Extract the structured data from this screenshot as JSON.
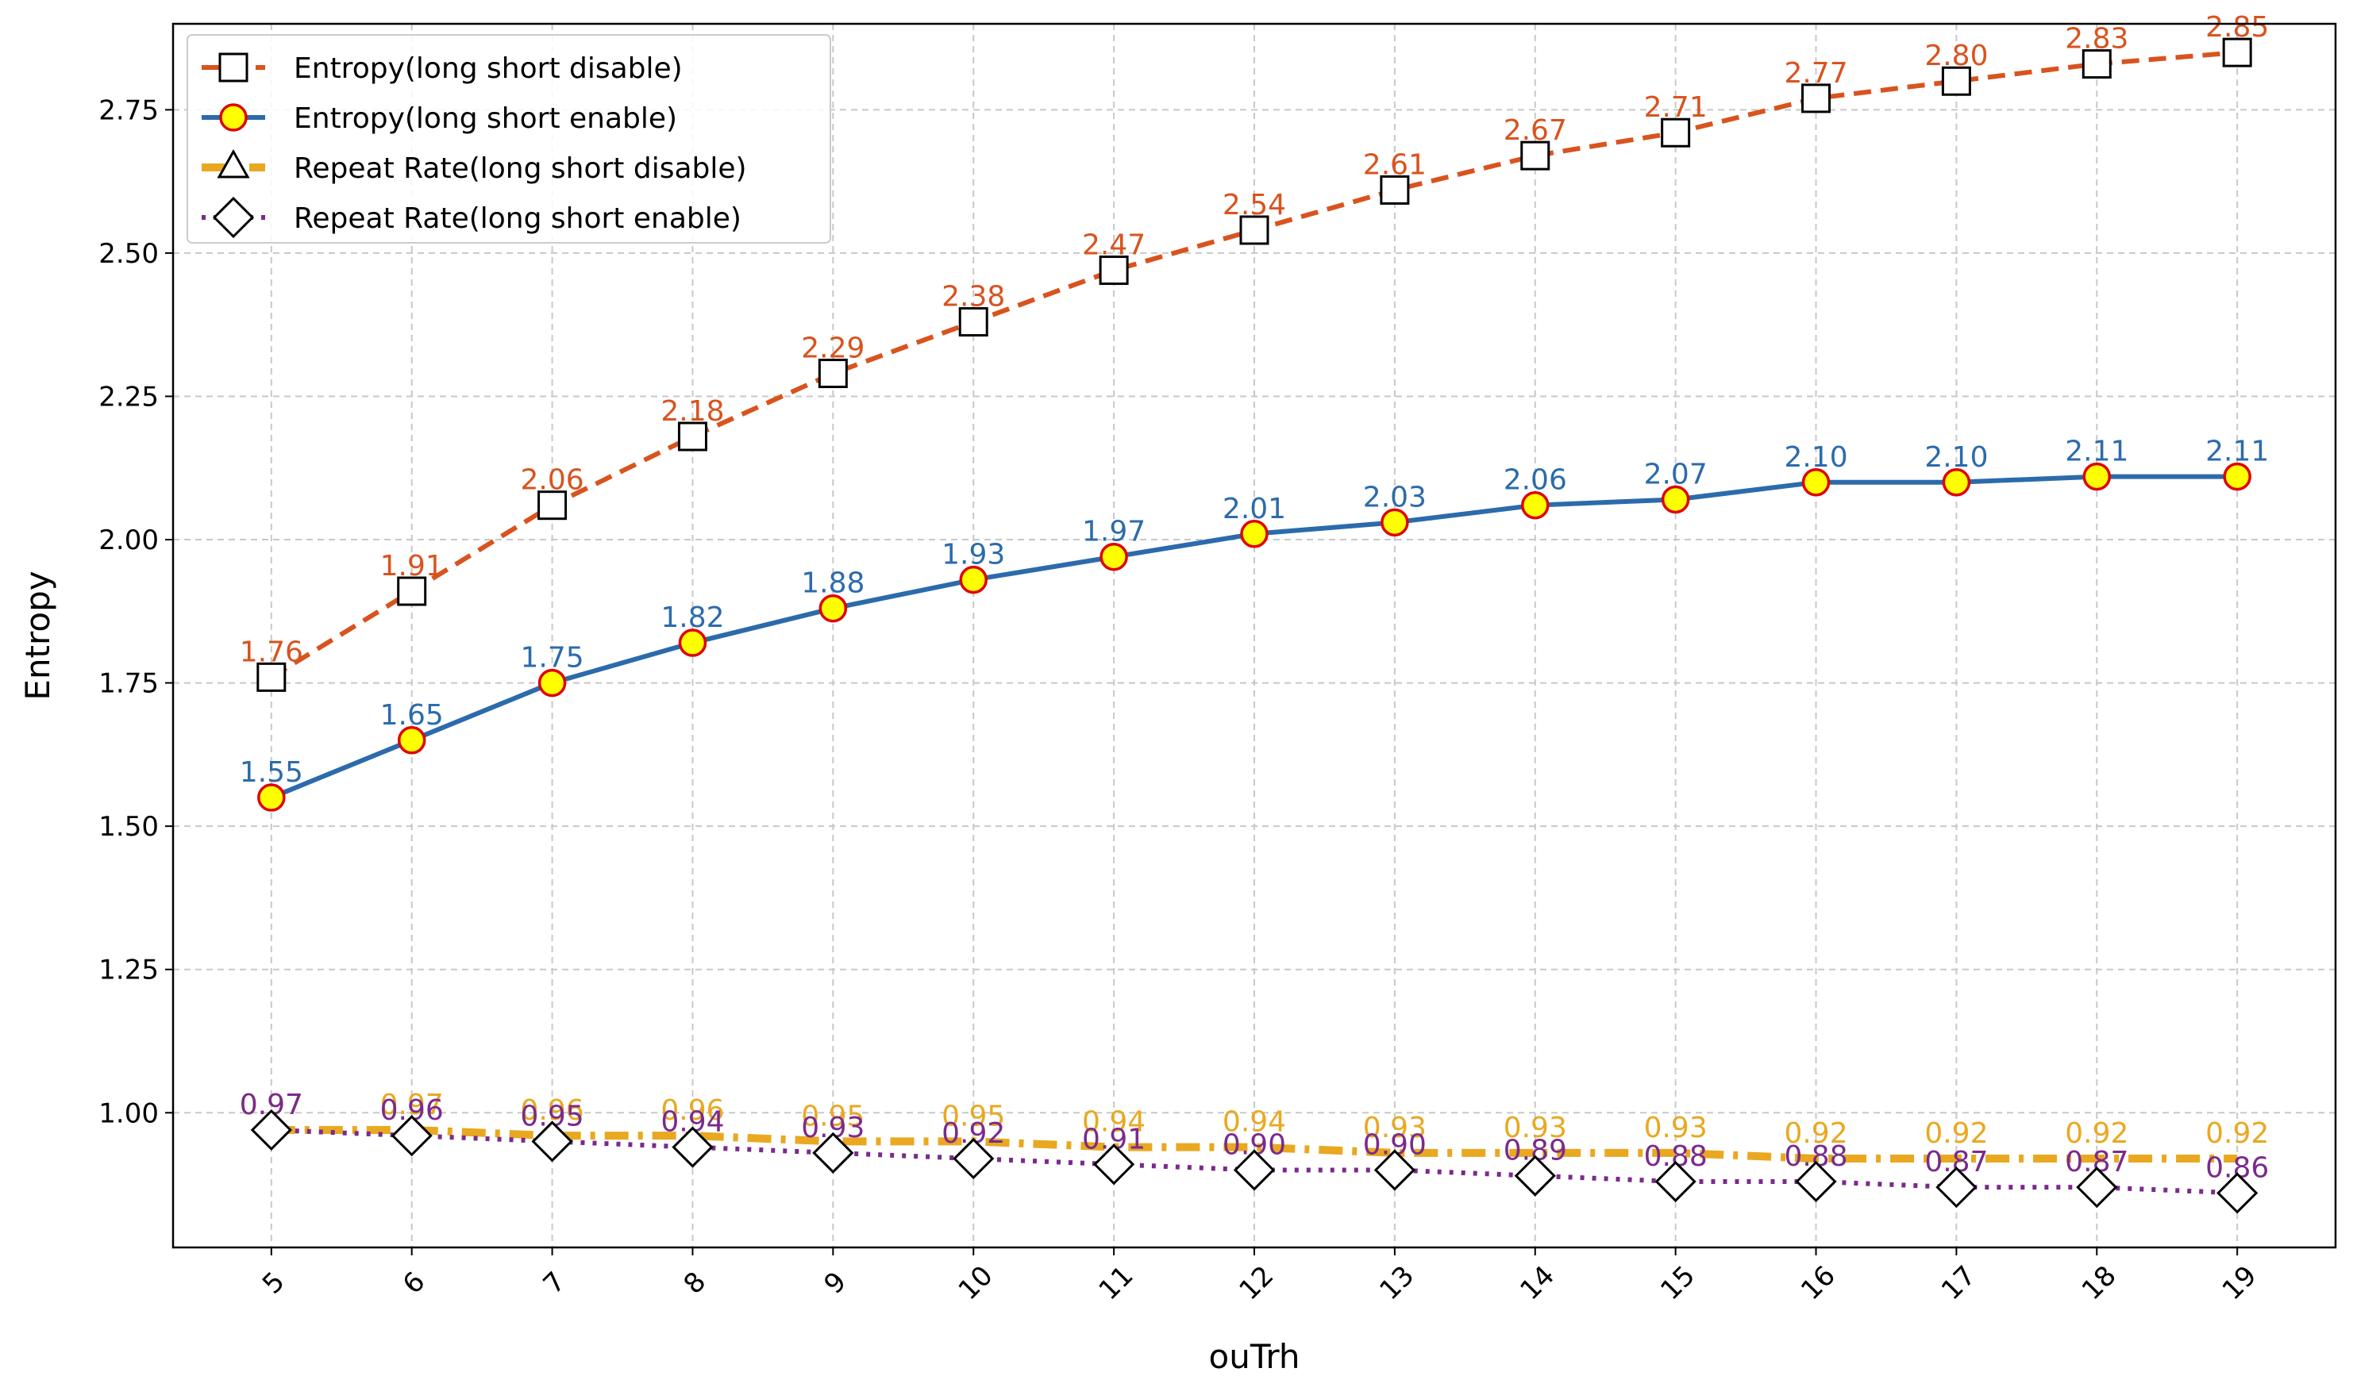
{
  "chart_data": {
    "type": "line",
    "xlabel": "ouTrh",
    "ylabel": "Entropy",
    "x": [
      5,
      6,
      7,
      8,
      9,
      10,
      11,
      12,
      13,
      14,
      15,
      16,
      17,
      18,
      19
    ],
    "xlim": [
      4.3,
      19.7
    ],
    "ylim": [
      0.765,
      2.9
    ],
    "yticks": [
      1.0,
      1.25,
      1.5,
      1.75,
      2.0,
      2.25,
      2.5,
      2.75
    ],
    "ytick_labels": [
      "1.00",
      "1.25",
      "1.50",
      "1.75",
      "2.00",
      "2.25",
      "2.50",
      "2.75"
    ],
    "xtick_labels": [
      "5",
      "6",
      "7",
      "8",
      "9",
      "10",
      "11",
      "12",
      "13",
      "14",
      "15",
      "16",
      "17",
      "18",
      "19"
    ],
    "grid": true,
    "legend_position": "top-left",
    "series": [
      {
        "name": "Entropy(long short disable)",
        "color": "#d9531e",
        "line_style": "dashed",
        "marker": "square",
        "values": [
          1.76,
          1.91,
          2.06,
          2.18,
          2.29,
          2.38,
          2.47,
          2.54,
          2.61,
          2.67,
          2.71,
          2.77,
          2.8,
          2.83,
          2.85
        ],
        "labels": [
          "1.76",
          "1.91",
          "2.06",
          "2.18",
          "2.29",
          "2.38",
          "2.47",
          "2.54",
          "2.61",
          "2.67",
          "2.71",
          "2.77",
          "2.80",
          "2.83",
          "2.85"
        ]
      },
      {
        "name": "Entropy(long short enable)",
        "color": "#2c6bab",
        "line_style": "solid",
        "marker": "circle",
        "values": [
          1.55,
          1.65,
          1.75,
          1.82,
          1.88,
          1.93,
          1.97,
          2.01,
          2.03,
          2.06,
          2.07,
          2.1,
          2.1,
          2.11,
          2.11
        ],
        "labels": [
          "1.55",
          "1.65",
          "1.75",
          "1.82",
          "1.88",
          "1.93",
          "1.97",
          "2.01",
          "2.03",
          "2.06",
          "2.07",
          "2.10",
          "2.10",
          "2.11",
          "2.11"
        ]
      },
      {
        "name": "Repeat Rate(long short disable)",
        "color": "#e9a820",
        "line_style": "dashdot",
        "marker": "triangle",
        "values": [
          0.97,
          0.97,
          0.96,
          0.96,
          0.95,
          0.95,
          0.94,
          0.94,
          0.93,
          0.93,
          0.93,
          0.92,
          0.92,
          0.92,
          0.92
        ],
        "labels": [
          "0.97",
          "0.97",
          "0.96",
          "0.96",
          "0.95",
          "0.95",
          "0.94",
          "0.94",
          "0.93",
          "0.93",
          "0.93",
          "0.92",
          "0.92",
          "0.92",
          "0.92"
        ]
      },
      {
        "name": "Repeat Rate(long short enable)",
        "color": "#7b2a8c",
        "line_style": "dotted",
        "marker": "diamond",
        "values": [
          0.97,
          0.96,
          0.95,
          0.94,
          0.93,
          0.92,
          0.91,
          0.9,
          0.9,
          0.89,
          0.88,
          0.88,
          0.87,
          0.87,
          0.86
        ],
        "labels": [
          "0.97",
          "0.96",
          "0.95",
          "0.94",
          "0.93",
          "0.92",
          "0.91",
          "0.90",
          "0.90",
          "0.89",
          "0.88",
          "0.88",
          "0.87",
          "0.87",
          "0.86"
        ]
      }
    ]
  }
}
